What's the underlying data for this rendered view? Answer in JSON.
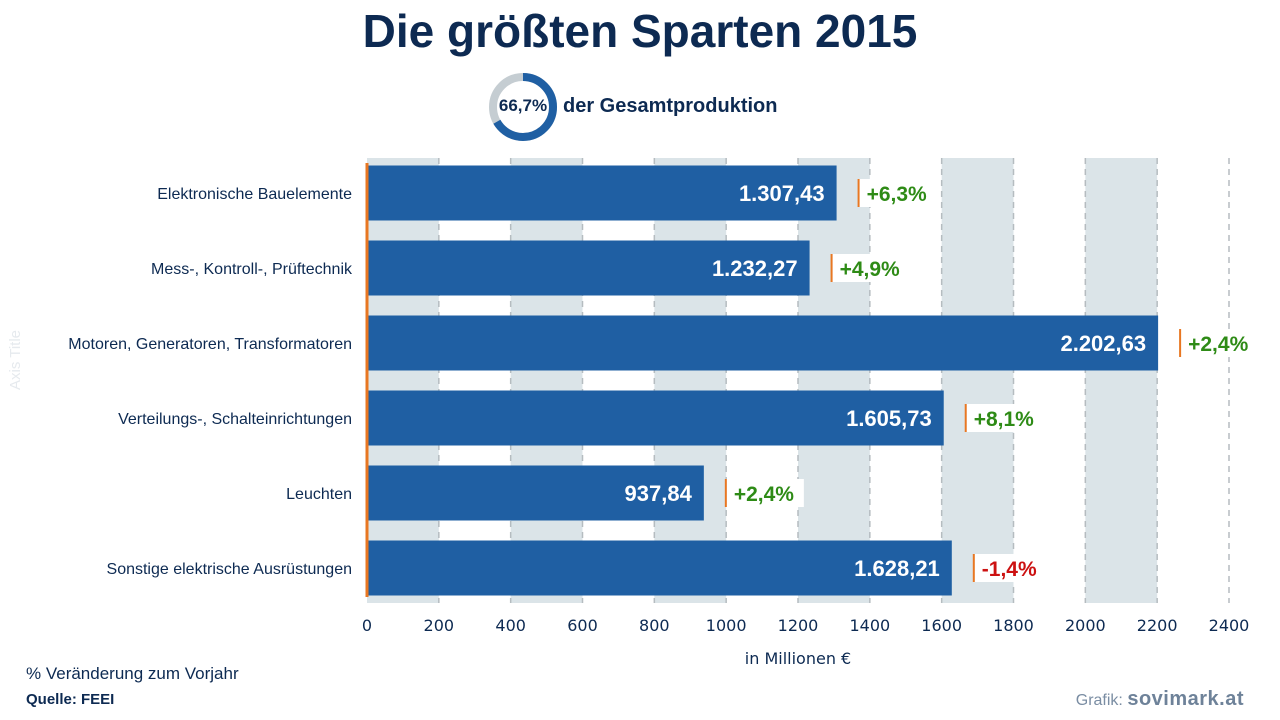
{
  "title": "Die größten Sparten 2015",
  "share": {
    "value": "66,7%",
    "fraction": 0.667,
    "label": "der Gesamtproduktion"
  },
  "note": "% Veränderung zum Vorjahr",
  "source": "Quelle: FEEI",
  "credit_prefix": "Grafik:",
  "credit_brand": "sovimark.at",
  "colors": {
    "bar": "#1f5fa3",
    "band": "#dbe4e8",
    "axis": "#e87722",
    "positive": "#2e8b16",
    "negative": "#cc1111",
    "text": "#0d2a52"
  },
  "chart_data": {
    "type": "bar",
    "orientation": "horizontal",
    "categories": [
      "Elektronische Bauelemente",
      "Mess-, Kontroll-, Prüftechnik",
      "Motoren, Generatoren, Transformatoren",
      "Verteilungs-, Schalteinrichtungen",
      "Leuchten",
      "Sonstige elektrische Ausrüstungen"
    ],
    "values": [
      1307.43,
      1232.27,
      2202.63,
      1605.73,
      937.84,
      1628.21
    ],
    "value_labels": [
      "1.307,43",
      "1.232,27",
      "2.202,63",
      "1.605,73",
      "937,84",
      "1.628,21"
    ],
    "change_labels": [
      "+6,3%",
      "+4,9%",
      "+2,4%",
      "+8,1%",
      "+2,4%",
      "-1,4%"
    ],
    "xlabel": "in Millionen €",
    "ylabel": "Axis Title",
    "xlim": [
      0,
      2400
    ],
    "xticks": [
      0,
      200,
      400,
      600,
      800,
      1000,
      1200,
      1400,
      1600,
      1800,
      2000,
      2200,
      2400
    ],
    "grid": true
  }
}
